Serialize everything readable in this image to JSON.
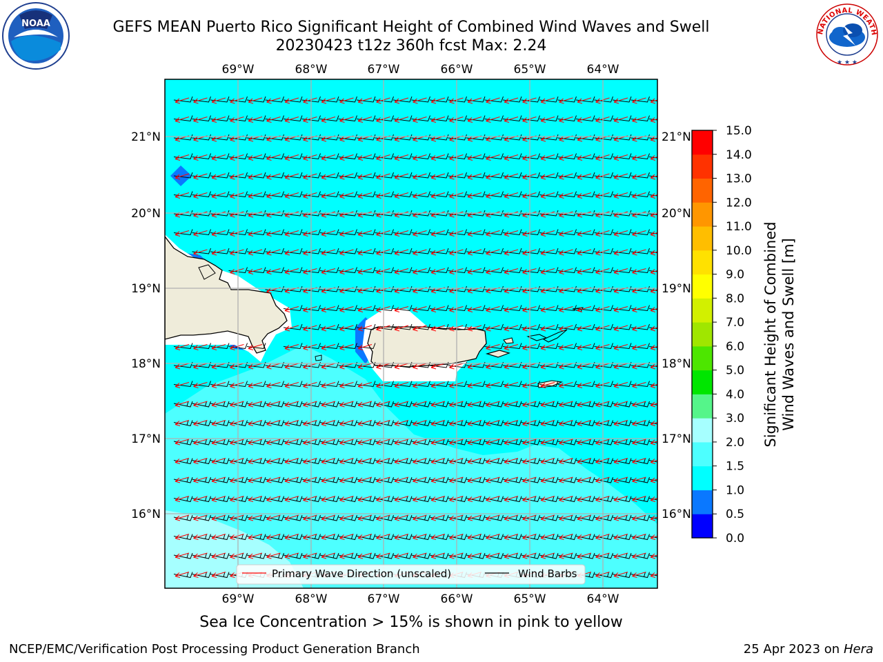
{
  "title_line1": "GEFS MEAN Puerto Rico Significant Height of Combined Wind Waves and Swell",
  "title_line2": "20230423 t12z 360h fcst   Max: 2.24",
  "caption": "Sea Ice Concentration > 15% is shown in pink to yellow",
  "footer_left": "NCEP/EMC/Verification Post Processing Product Generation Branch",
  "footer_right_prefix": "25 Apr 2023 on ",
  "footer_right_host": "Hera",
  "lon_labels": [
    "69°W",
    "68°W",
    "67°W",
    "66°W",
    "65°W",
    "64°W"
  ],
  "lat_labels": [
    "21°N",
    "20°N",
    "19°N",
    "18°N",
    "17°N",
    "16°N"
  ],
  "legend": {
    "wave_direction": "Primary Wave Direction (unscaled)",
    "wind_barbs": "Wind Barbs"
  },
  "colorbar": {
    "label_line1": "Significant Height of Combined",
    "label_line2": "Wind Waves and Swell [m]",
    "ticks": [
      "0.0",
      "0.5",
      "1.0",
      "1.5",
      "2.0",
      "3.0",
      "4.0",
      "5.0",
      "6.0",
      "7.0",
      "8.0",
      "9.0",
      "10.0",
      "11.0",
      "12.0",
      "13.0",
      "14.0",
      "15.0"
    ],
    "colors": [
      "#0000ff",
      "#0a78ff",
      "#00ffff",
      "#4dffff",
      "#a6ffff",
      "#55f58a",
      "#00e600",
      "#4de600",
      "#a0e600",
      "#d2f000",
      "#ffff00",
      "#ffe100",
      "#ffbe00",
      "#ff9600",
      "#ff6400",
      "#ff3200",
      "#ff0000"
    ]
  },
  "logos": {
    "noaa_text": "NOAA",
    "nws_text": "NATIONAL WEATHER SERVICE"
  }
}
